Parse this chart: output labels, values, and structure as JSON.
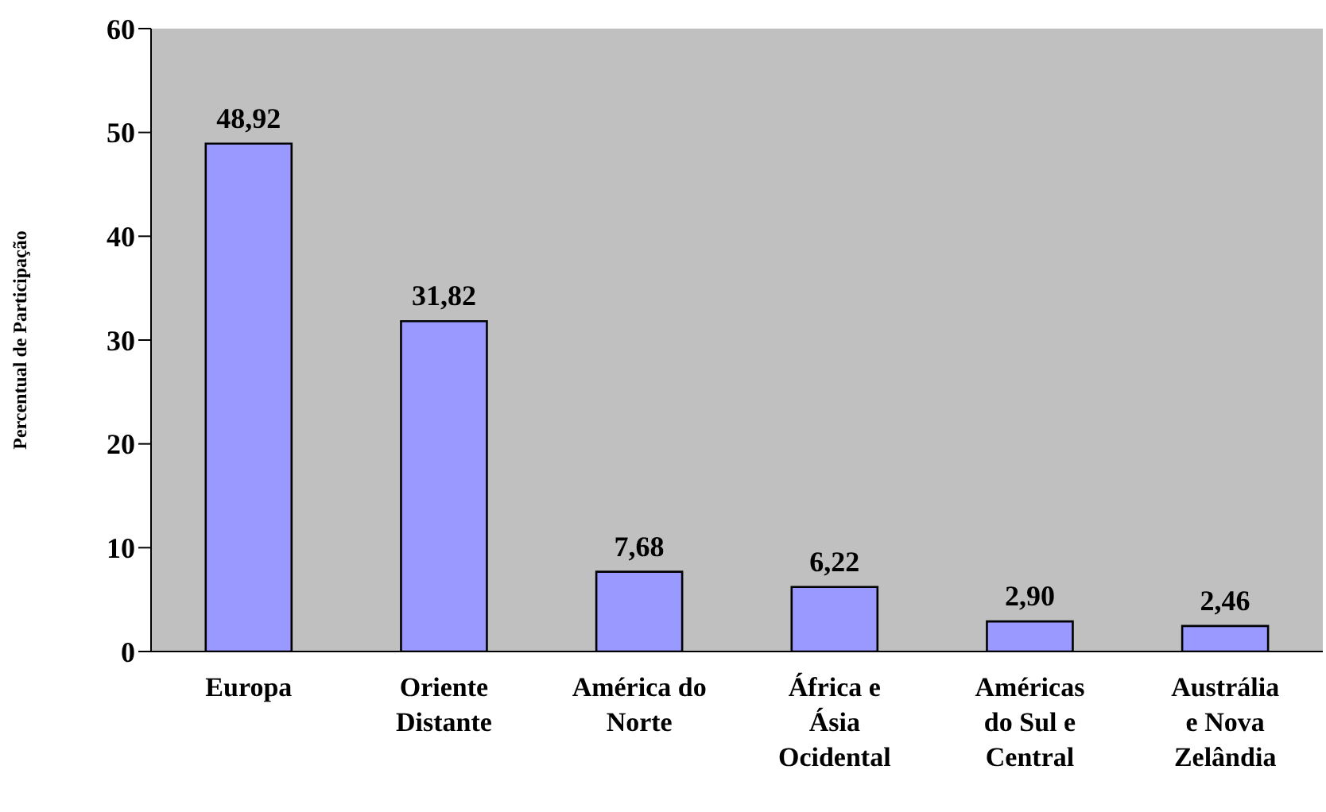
{
  "chart_data": {
    "type": "bar",
    "ylabel": "Percentual de Participação",
    "categories": [
      "Europa",
      "Oriente Distante",
      "América do Norte",
      "África e Ásia Ocidental",
      "Américas do Sul e Central",
      "Austrália e Nova Zelândia"
    ],
    "values": [
      48.92,
      31.82,
      7.68,
      6.22,
      2.9,
      2.46
    ],
    "value_labels": [
      "48,92",
      "31,82",
      "7,68",
      "6,22",
      "2,90",
      "2,46"
    ],
    "color": "#9999ff",
    "ylim": [
      0,
      60
    ],
    "yticks": [
      0,
      10,
      20,
      30,
      40,
      50,
      60
    ],
    "grid": false
  }
}
